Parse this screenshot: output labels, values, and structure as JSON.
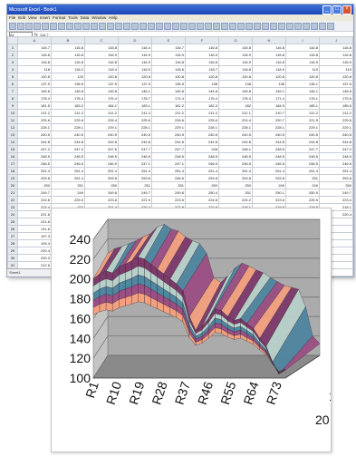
{
  "window": {
    "title": "Microsoft Excel - Book1",
    "menus": [
      "File",
      "Edit",
      "View",
      "Insert",
      "Format",
      "Tools",
      "Data",
      "Window",
      "Help"
    ],
    "name_box": "A1",
    "formula": "116.7"
  },
  "sheet": {
    "columns": [
      "A",
      "B",
      "C",
      "D",
      "E",
      "F",
      "G",
      "H",
      "I",
      "J"
    ],
    "rows": [
      [
        "116.7",
        "116.8",
        "116.8",
        "116.4",
        "116.7",
        "116.8",
        "116.8",
        "116.8",
        "116.8",
        "116.8"
      ],
      [
        "116.8",
        "116.8",
        "116.9",
        "116.9",
        "116.9",
        "116.9",
        "116.9",
        "116.8",
        "116.8",
        "116.8"
      ],
      [
        "116.8",
        "116.8",
        "116.8",
        "116.9",
        "116.8",
        "116.8",
        "116.9",
        "116.8",
        "116.9",
        "116.9"
      ],
      [
        "118",
        "118.2",
        "118.4",
        "118.5",
        "118.6",
        "118.7",
        "118.8",
        "118.9",
        "119",
        "119"
      ],
      [
        "120.8",
        "120",
        "120.8",
        "120.8",
        "120.8",
        "120.8",
        "120.8",
        "120.8",
        "120.8",
        "120.8"
      ],
      [
        "137.5",
        "136.5",
        "137.5",
        "137.5",
        "136.5",
        "138",
        "138",
        "138",
        "136.1",
        "137.5"
      ],
      [
        "145.8",
        "145.8",
        "145.8",
        "146.1",
        "145.8",
        "144.8",
        "145.8",
        "145.1",
        "146.1",
        "145.8"
      ],
      [
        "178.4",
        "178.4",
        "176.4",
        "176.7",
        "174.4",
        "176.4",
        "176.4",
        "171.4",
        "176.1",
        "175.6"
      ],
      [
        "181.5",
        "183.2",
        "184.1",
        "183.1",
        "181.2",
        "182.3",
        "182",
        "184.5",
        "185.1",
        "185.6"
      ],
      [
        "211.2",
        "211.2",
        "211.2",
        "211.2",
        "211.2",
        "211.2",
        "212.1",
        "210.7",
        "211.2",
        "211.2"
      ],
      [
        "225.6",
        "225.6",
        "226.4",
        "225.6",
        "226.6",
        "225.6",
        "224.4",
        "220.7",
        "221.5",
        "225.6"
      ],
      [
        "228.1",
        "228.1",
        "229.1",
        "228.1",
        "229.1",
        "228.1",
        "228.1",
        "228.1",
        "229.1",
        "229.1"
      ],
      [
        "240.5",
        "240.5",
        "240.5",
        "240.5",
        "240.5",
        "240.5",
        "240.5",
        "240.5",
        "240.5",
        "240.5"
      ],
      [
        "244.8",
        "244.8",
        "244.8",
        "244.8",
        "244.8",
        "244.8",
        "244.8",
        "244.8",
        "244.8",
        "244.8"
      ],
      [
        "247.2",
        "247.2",
        "247.6",
        "247.7",
        "247.7",
        "248",
        "248.1",
        "248.5",
        "247.7",
        "247.2"
      ],
      [
        "248.5",
        "248.5",
        "248.5",
        "248.5",
        "248.5",
        "248.5",
        "248.5",
        "248.5",
        "248.5",
        "248.5"
      ],
      [
        "246.5",
        "246.5",
        "246.9",
        "247.1",
        "247.1",
        "246.5",
        "246.5",
        "246.5",
        "246.5",
        "246.5"
      ],
      [
        "251.4",
        "251.4",
        "251.4",
        "251.4",
        "251.4",
        "251.4",
        "251.4",
        "251.4",
        "251.4",
        "251.4"
      ],
      [
        "253.8",
        "251.4",
        "253.8",
        "253.8",
        "248.6",
        "253.8",
        "253.8",
        "253.8",
        "251",
        "253.8"
      ],
      [
        "250",
        "251",
        "250",
        "251",
        "251",
        "250",
        "250",
        "249",
        "249",
        "250"
      ],
      [
        "249.7",
        "249",
        "249.6",
        "249.7",
        "249.6",
        "250.4",
        "251",
        "250.1",
        "250.5",
        "249.7"
      ],
      [
        "224.6",
        "225.5",
        "223.6",
        "221.9",
        "223.5",
        "224.8",
        "224.2",
        "223.6",
        "225.5",
        "223.4"
      ],
      [
        "223.4",
        "222",
        "221.4",
        "220.2",
        "222.8",
        "222.8",
        "218.1",
        "219.5",
        "218.5",
        "218.1"
      ],
      [
        "221.6",
        "219.7",
        "220.9",
        "220.1",
        "220.8",
        "220.2",
        "220.2",
        "220.8",
        "220.4",
        "220.4"
      ],
      [
        "221.6",
        "",
        "",
        "",
        "",
        "",
        "",
        "",
        "",
        ""
      ],
      [
        "211.6",
        "",
        "",
        "",
        "",
        "",
        "",
        "",
        "",
        ""
      ],
      [
        "197.3",
        "",
        "",
        "",
        "",
        "",
        "",
        "",
        "",
        ""
      ],
      [
        "193.4",
        "",
        "",
        "",
        "",
        "",
        "",
        "",
        "",
        ""
      ],
      [
        "200.4",
        "",
        "",
        "",
        "",
        "",
        "",
        "",
        "",
        ""
      ],
      [
        "200.3",
        "",
        "",
        "",
        "",
        "",
        "",
        "",
        "",
        ""
      ],
      [
        "212.6",
        "",
        "",
        "",
        "",
        "",
        "",
        "",
        "",
        ""
      ],
      [
        "233.5",
        "",
        "",
        "",
        "",
        "",
        "",
        "",
        "",
        ""
      ]
    ]
  },
  "sheet_tab": "Sheet1",
  "chart_data": {
    "type": "area",
    "subtype": "3d-surface",
    "y_axis_ticks": [
      "240",
      "220",
      "200",
      "180",
      "160",
      "140",
      "120",
      "100"
    ],
    "ylim": [
      100,
      240
    ],
    "x_axis_ticks": [
      "R1",
      "R10",
      "R19",
      "R28",
      "R37",
      "R46",
      "R55",
      "R64",
      "R73"
    ],
    "depth_axis_ticks": [
      "1",
      "20"
    ],
    "profile_back": [
      205,
      210,
      212,
      215,
      218,
      222,
      225,
      232,
      235,
      230,
      228,
      222,
      218,
      215,
      205,
      180,
      175,
      182,
      190,
      195,
      192,
      188,
      185,
      180,
      176,
      172,
      170,
      168,
      150,
      120,
      112
    ],
    "profile_front": [
      200,
      205,
      208,
      206,
      212,
      215,
      218,
      222,
      220,
      215,
      210,
      205,
      200,
      195,
      188,
      162,
      148,
      152,
      160,
      170,
      168,
      162,
      158,
      160,
      155,
      150,
      140,
      132,
      116,
      104,
      108
    ],
    "band_colors": [
      "#f2a07e",
      "#7d3a6b",
      "#b7d0c9",
      "#4f86a0",
      "#9b4f84"
    ]
  }
}
